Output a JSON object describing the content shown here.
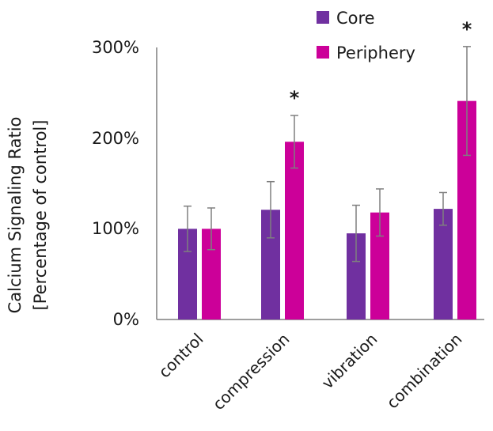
{
  "chart_data": {
    "type": "bar",
    "ylabel": [
      "Calcium Signaling Ratio",
      "[Percentage of control]"
    ],
    "yticks": [
      "0%",
      "100%",
      "200%",
      "300%"
    ],
    "ylim": [
      0,
      300
    ],
    "categories": [
      "control",
      "compression",
      "vibration",
      "combination"
    ],
    "series": [
      {
        "name": "Core",
        "color": "#7030a0",
        "values": [
          100,
          121,
          95,
          122
        ],
        "errors": [
          25,
          31,
          31,
          18
        ]
      },
      {
        "name": "Periphery",
        "color": "#cc0099",
        "values": [
          100,
          196,
          118,
          241
        ],
        "errors": [
          23,
          29,
          26,
          60
        ]
      }
    ],
    "annotations": [
      {
        "category": "compression",
        "series": "Periphery",
        "text": "*"
      },
      {
        "category": "combination",
        "series": "Periphery",
        "text": "*"
      }
    ],
    "legend_position": "top-right",
    "grid": false
  }
}
